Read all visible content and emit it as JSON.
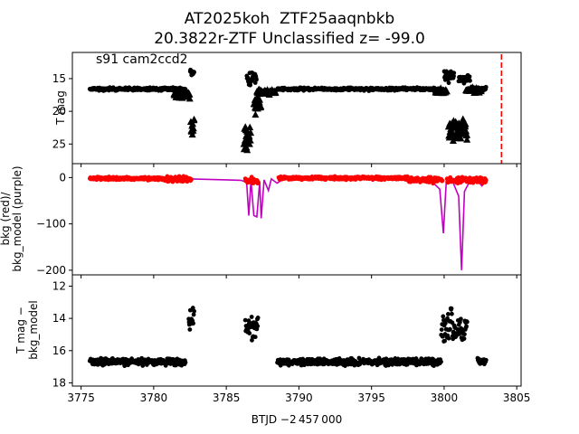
{
  "title_line1": "AT2025koh  ZTF25aaqnbkb",
  "title_line2": "20.3822r-ZTF Unclassified z= -99.0",
  "chart_data": [
    {
      "type": "scatter",
      "panel": "top",
      "annotation": "s91 cam2ccd2",
      "ylabel": "T mag",
      "y_inverted": true,
      "xlim": [
        3774.4,
        3805.3
      ],
      "ylim": [
        28.0,
        11.0
      ],
      "yticks": [
        15,
        20,
        25
      ],
      "grid": false,
      "reference_line": {
        "x": 3803.95,
        "color": "#ff0000",
        "style": "dashed"
      },
      "marker_color": "#000000",
      "segments": [
        {
          "marker": "circle",
          "x_start": 3775.6,
          "x_end": 3782.2,
          "y_center": 16.6,
          "y_spread": 0.5
        },
        {
          "marker": "triangle",
          "x_start": 3781.4,
          "x_end": 3782.5,
          "y_center": 17.5,
          "y_spread": 1.3
        },
        {
          "marker": "triangle",
          "x_start": 3782.55,
          "x_end": 3782.8,
          "y_center": 22.5,
          "y_spread": 4.0
        },
        {
          "marker": "circle",
          "x_start": 3782.5,
          "x_end": 3782.8,
          "y_center": 14.0,
          "y_spread": 1.3
        },
        {
          "marker": "triangle",
          "x_start": 3786.2,
          "x_end": 3786.7,
          "y_center": 24.0,
          "y_spread": 4.0
        },
        {
          "marker": "circle",
          "x_start": 3786.4,
          "x_end": 3787.1,
          "y_center": 15.0,
          "y_spread": 2.2
        },
        {
          "marker": "triangle",
          "x_start": 3786.9,
          "x_end": 3787.4,
          "y_center": 19.0,
          "y_spread": 3.0
        },
        {
          "marker": "triangle",
          "x_start": 3787.1,
          "x_end": 3788.4,
          "y_center": 17.0,
          "y_spread": 1.0
        },
        {
          "marker": "circle",
          "x_start": 3788.5,
          "x_end": 3799.8,
          "y_center": 16.6,
          "y_spread": 0.5
        },
        {
          "marker": "triangle",
          "x_start": 3799.4,
          "x_end": 3800.2,
          "y_center": 17.0,
          "y_spread": 1.0
        },
        {
          "marker": "circle",
          "x_start": 3800.0,
          "x_end": 3800.7,
          "y_center": 14.5,
          "y_spread": 2.2
        },
        {
          "marker": "triangle",
          "x_start": 3800.3,
          "x_end": 3801.6,
          "y_center": 23.0,
          "y_spread": 4.0
        },
        {
          "marker": "circle",
          "x_start": 3801.0,
          "x_end": 3801.8,
          "y_center": 15.0,
          "y_spread": 1.5
        },
        {
          "marker": "triangle",
          "x_start": 3801.5,
          "x_end": 3802.6,
          "y_center": 16.8,
          "y_spread": 1.0
        },
        {
          "marker": "circle",
          "x_start": 3802.0,
          "x_end": 3802.9,
          "y_center": 16.5,
          "y_spread": 0.5
        }
      ]
    },
    {
      "type": "scatter",
      "panel": "middle",
      "ylabel_line1": "bkg (red)/",
      "ylabel_line2": "bkg_model (purple)",
      "xlim": [
        3774.4,
        3805.3
      ],
      "ylim": [
        -210,
        30
      ],
      "yticks": [
        0,
        -100,
        -200
      ],
      "grid": false,
      "series": [
        {
          "name": "bkg",
          "color": "#ff0000",
          "kind": "points",
          "segments": [
            {
              "x_start": 3775.6,
              "x_end": 3780.6,
              "y_center": -2,
              "y_spread": 7
            },
            {
              "x_start": 3780.6,
              "x_end": 3782.6,
              "y_center": -4,
              "y_spread": 14
            },
            {
              "x_start": 3786.3,
              "x_end": 3787.2,
              "y_center": -6,
              "y_spread": 16
            },
            {
              "x_start": 3788.6,
              "x_end": 3797.5,
              "y_center": -1,
              "y_spread": 8
            },
            {
              "x_start": 3797.5,
              "x_end": 3799.9,
              "y_center": -5,
              "y_spread": 14
            },
            {
              "x_start": 3800.2,
              "x_end": 3802.9,
              "y_center": -6,
              "y_spread": 16
            }
          ]
        },
        {
          "name": "bkg_model",
          "color": "#bf00bf",
          "kind": "line",
          "points": [
            [
              3775.6,
              -1
            ],
            [
              3782.6,
              -3
            ],
            [
              3786.0,
              -6
            ],
            [
              3786.4,
              -10
            ],
            [
              3786.55,
              -82
            ],
            [
              3786.7,
              -6
            ],
            [
              3786.9,
              -82
            ],
            [
              3787.1,
              -85
            ],
            [
              3787.3,
              -8
            ],
            [
              3787.4,
              -88
            ],
            [
              3787.6,
              -5
            ],
            [
              3787.9,
              -28
            ],
            [
              3788.1,
              -3
            ],
            [
              3788.5,
              -12
            ],
            [
              3789.0,
              -2
            ],
            [
              3797.0,
              -1
            ],
            [
              3798.5,
              -4
            ],
            [
              3799.2,
              -10
            ],
            [
              3799.7,
              -25
            ],
            [
              3799.95,
              -120
            ],
            [
              3800.15,
              -8
            ],
            [
              3800.6,
              -10
            ],
            [
              3801.0,
              -40
            ],
            [
              3801.2,
              -200
            ],
            [
              3801.4,
              -30
            ],
            [
              3801.8,
              -6
            ],
            [
              3802.2,
              -4
            ],
            [
              3802.6,
              -18
            ],
            [
              3802.9,
              -5
            ]
          ]
        }
      ]
    },
    {
      "type": "scatter",
      "panel": "bottom",
      "ylabel_line1": "T mag −",
      "ylabel_line2": "bkg_model",
      "xlabel": "BTJD −2 457 000",
      "xlim": [
        3774.4,
        3805.3
      ],
      "ylim": [
        18.2,
        11.3
      ],
      "y_inverted": true,
      "yticks": [
        12,
        14,
        16,
        18
      ],
      "xticks": [
        3775,
        3780,
        3785,
        3790,
        3795,
        3800,
        3805
      ],
      "grid": false,
      "marker_color": "#000000",
      "segments": [
        {
          "marker": "circle",
          "x_start": 3775.6,
          "x_end": 3782.2,
          "y_center": 16.7,
          "y_spread": 0.5
        },
        {
          "marker": "circle",
          "x_start": 3782.4,
          "x_end": 3782.8,
          "y_center": 14.0,
          "y_spread": 1.3
        },
        {
          "marker": "circle",
          "x_start": 3786.3,
          "x_end": 3787.2,
          "y_center": 14.5,
          "y_spread": 1.8
        },
        {
          "marker": "circle",
          "x_start": 3788.5,
          "x_end": 3799.8,
          "y_center": 16.7,
          "y_spread": 0.5
        },
        {
          "marker": "circle",
          "x_start": 3799.8,
          "x_end": 3800.6,
          "y_center": 14.5,
          "y_spread": 2.5
        },
        {
          "marker": "circle",
          "x_start": 3800.6,
          "x_end": 3801.6,
          "y_center": 14.8,
          "y_spread": 1.8
        },
        {
          "marker": "circle",
          "x_start": 3802.3,
          "x_end": 3802.9,
          "y_center": 16.7,
          "y_spread": 0.5
        }
      ]
    }
  ]
}
